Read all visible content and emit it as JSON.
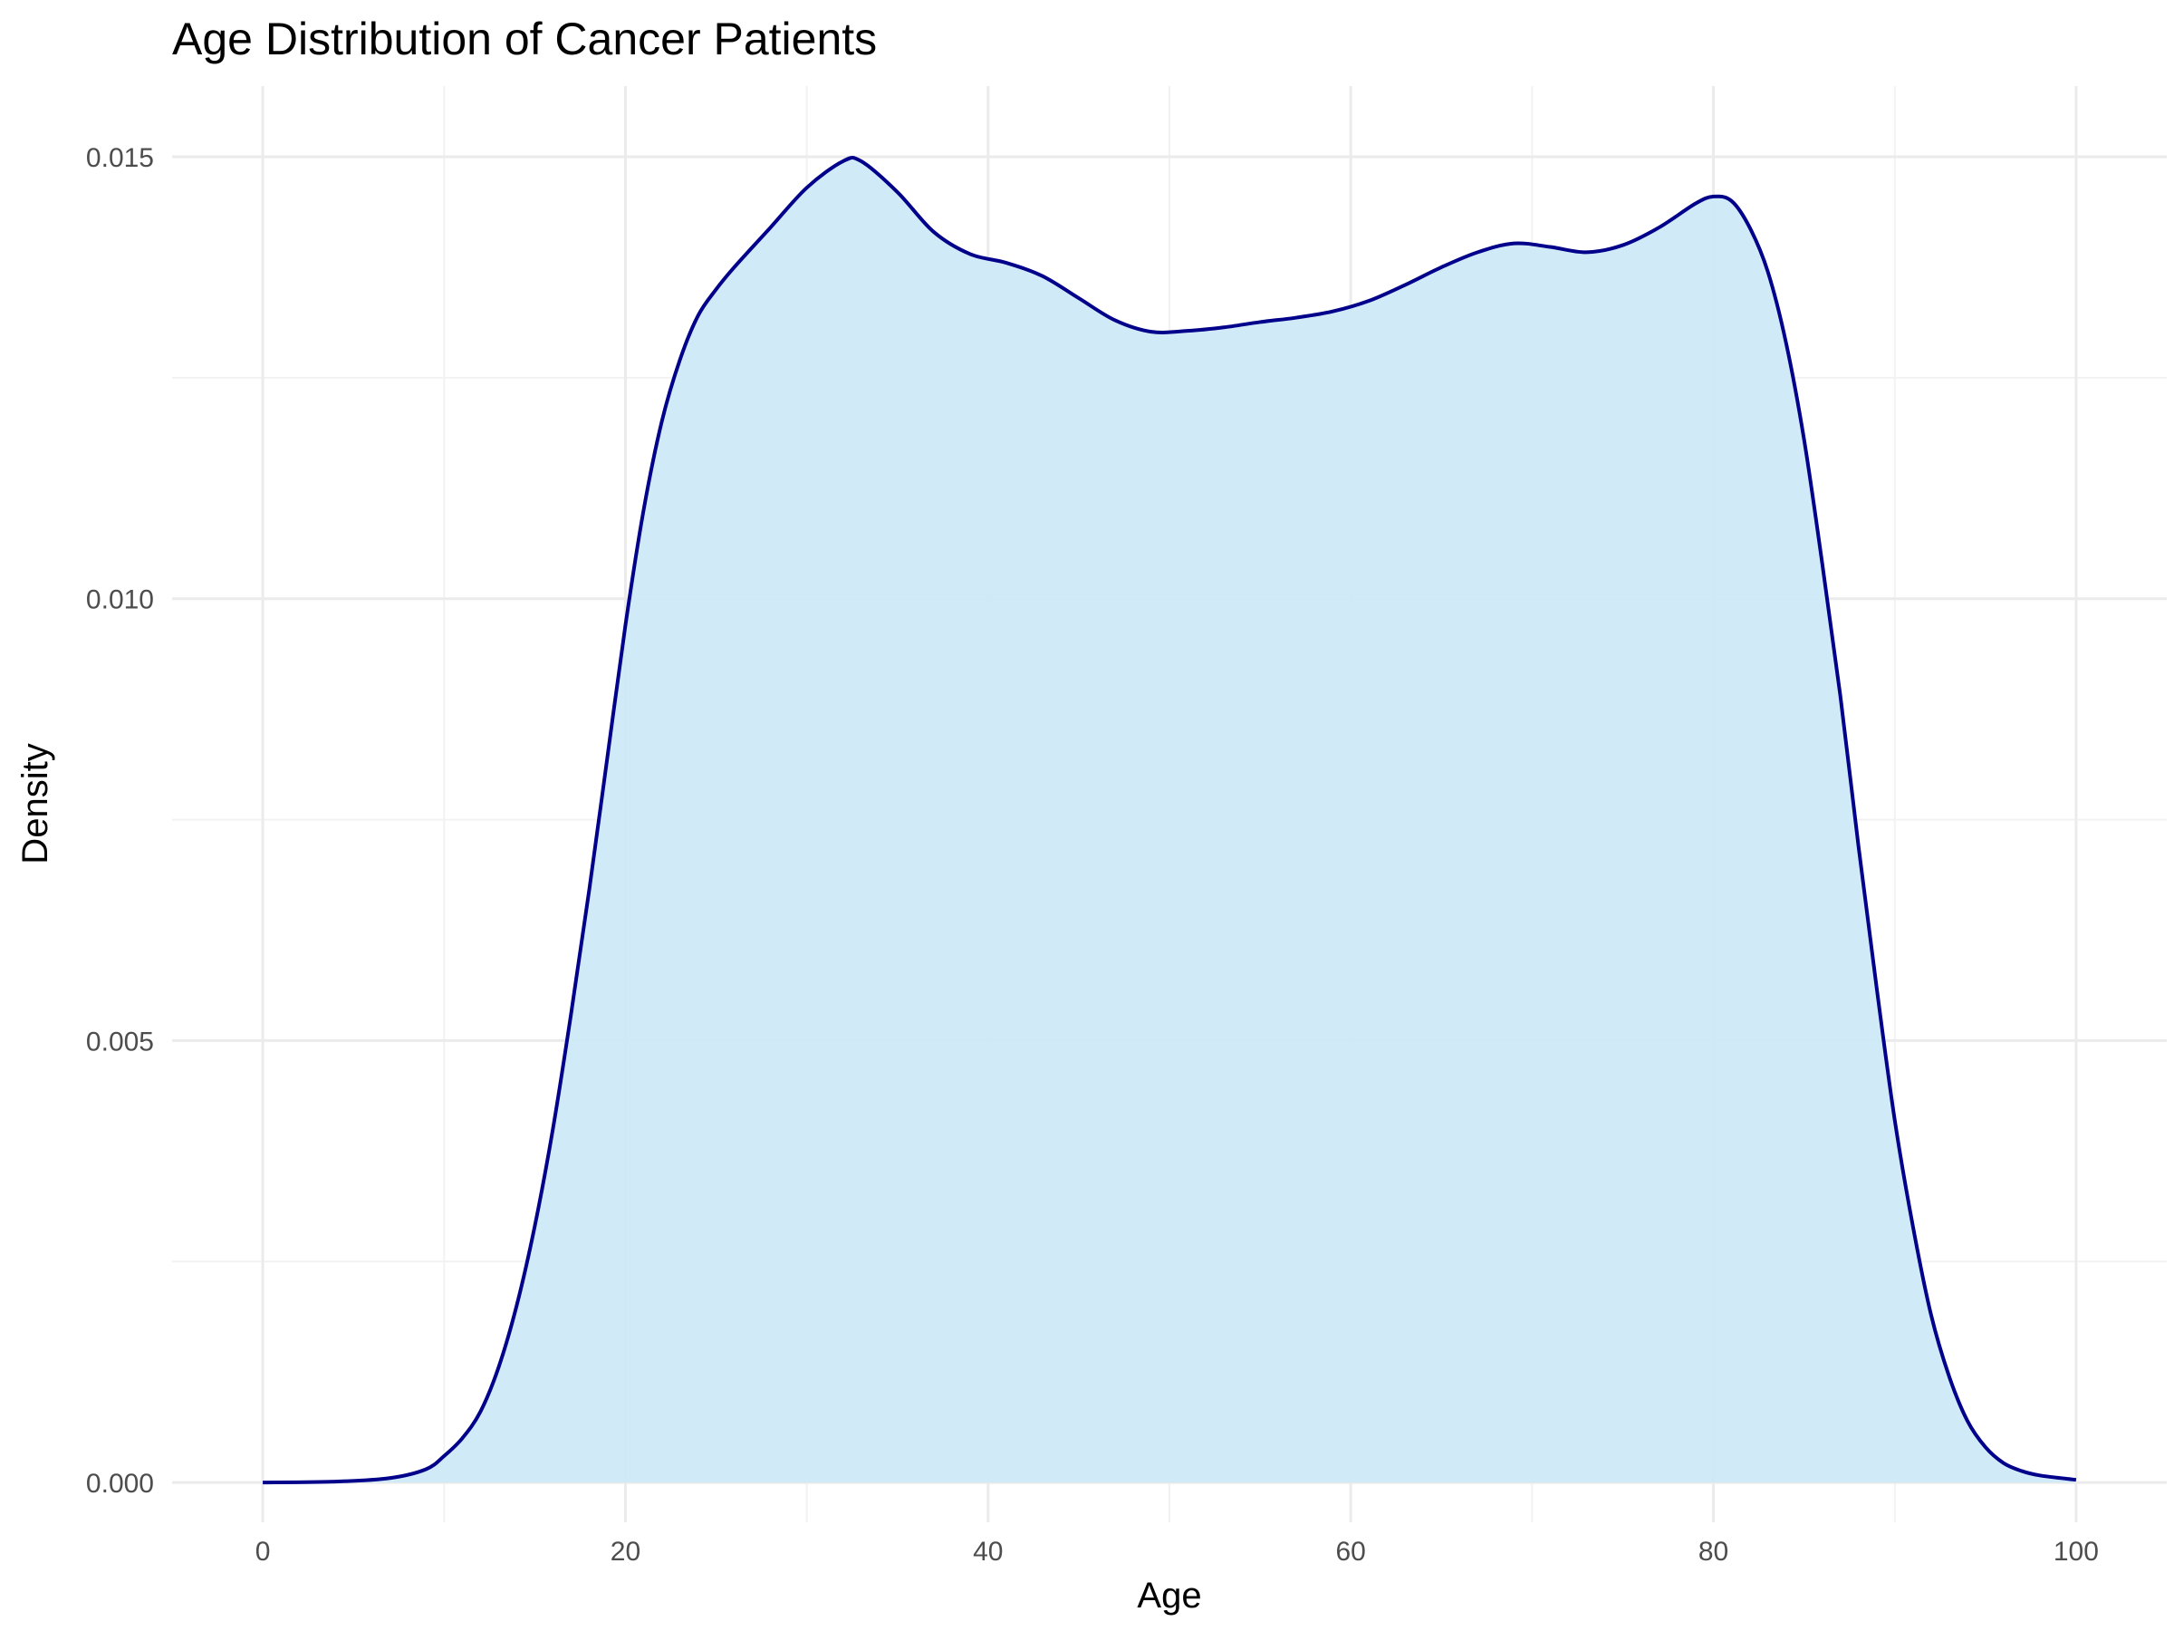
{
  "chart_data": {
    "type": "area",
    "title": "Age Distribution of Cancer Patients",
    "xlabel": "Age",
    "ylabel": "Density",
    "xlim": [
      -5,
      105
    ],
    "ylim": [
      -0.00045,
      0.0158
    ],
    "x_ticks": [
      0,
      20,
      40,
      60,
      80,
      100
    ],
    "x_tick_labels": [
      "0",
      "20",
      "40",
      "60",
      "80",
      "100"
    ],
    "y_ticks": [
      0,
      0.005,
      0.01,
      0.015
    ],
    "y_tick_labels": [
      "0.000",
      "0.005",
      "0.010",
      "0.015"
    ],
    "grid": true,
    "fill_color": "#cfe9f7",
    "line_color": "#00008b",
    "series": [
      {
        "x": [
          0,
          4,
          7,
          9,
          10,
          11,
          12,
          13,
          14,
          15,
          16,
          17,
          18,
          19,
          20,
          21,
          22,
          23,
          24,
          25,
          26,
          28,
          30,
          32,
          33,
          35,
          37,
          39,
          41,
          43,
          45,
          47,
          49,
          51,
          53,
          55,
          57,
          59,
          61,
          63,
          65,
          67,
          69,
          71,
          73,
          75,
          77,
          79,
          80,
          81,
          82,
          83,
          84,
          85,
          86,
          87,
          88,
          89,
          90,
          91,
          92,
          93,
          94,
          95,
          96,
          97,
          98,
          100
        ],
        "y": [
          0,
          1e-05,
          5e-05,
          0.00015,
          0.0003,
          0.0005,
          0.0008,
          0.0013,
          0.002,
          0.0029,
          0.004,
          0.0053,
          0.0067,
          0.0082,
          0.0097,
          0.011,
          0.012,
          0.0127,
          0.0132,
          0.0135,
          0.01375,
          0.0142,
          0.01465,
          0.01495,
          0.01495,
          0.0146,
          0.01415,
          0.0139,
          0.0138,
          0.01365,
          0.0134,
          0.01315,
          0.01302,
          0.01303,
          0.01307,
          0.01313,
          0.01318,
          0.01325,
          0.01337,
          0.01355,
          0.01375,
          0.01392,
          0.01402,
          0.01398,
          0.01392,
          0.014,
          0.0142,
          0.01447,
          0.01455,
          0.0145,
          0.0142,
          0.0137,
          0.0129,
          0.0118,
          0.0104,
          0.0089,
          0.0072,
          0.0056,
          0.0041,
          0.0029,
          0.0019,
          0.0012,
          0.0007,
          0.0004,
          0.00022,
          0.00013,
          8e-05,
          3e-05
        ]
      }
    ]
  }
}
